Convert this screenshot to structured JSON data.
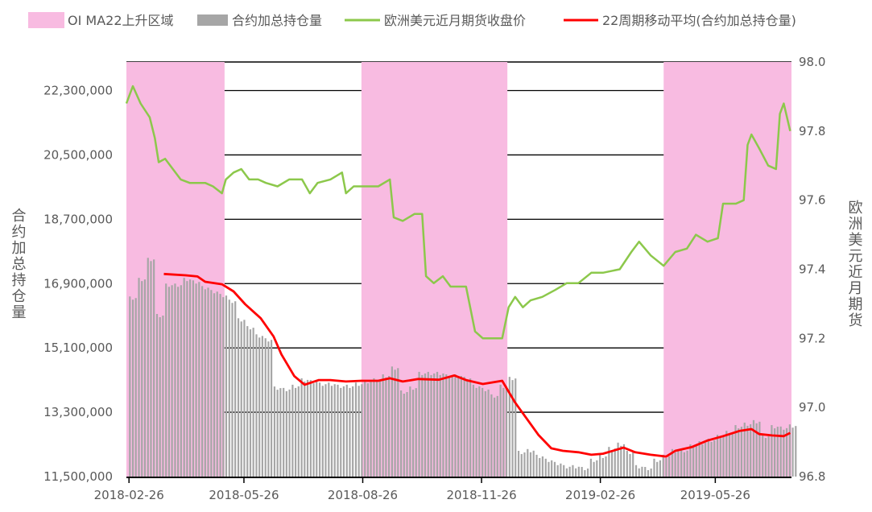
{
  "chart_data": {
    "type": "bar+line",
    "legend": {
      "placement": "top",
      "items": [
        {
          "name": "OI MA22上升区域",
          "kind": "area",
          "color": "#f8bbe1"
        },
        {
          "name": "合约加总持仓量",
          "kind": "bar",
          "color": "#a6a6a6"
        },
        {
          "name": "欧洲美元近月期货收盘价",
          "kind": "line",
          "color": "#8cc84b"
        },
        {
          "name": "22周期移动平均(合约加总持仓量)",
          "kind": "line",
          "color": "#ff0000"
        }
      ]
    },
    "xlim": [
      "2018-02-24",
      "2019-07-24"
    ],
    "x_ticks": [
      "2018-02-26",
      "2018-05-26",
      "2018-08-26",
      "2018-11-26",
      "2019-02-26",
      "2019-05-26"
    ],
    "left_axis": {
      "label": "合约加总持仓量",
      "ylim": [
        11500000,
        23100000
      ],
      "ticks": [
        11500000,
        13300000,
        15100000,
        16900000,
        18700000,
        20500000,
        22300000
      ],
      "tick_labels": [
        "11,500,000",
        "13,300,000",
        "15,100,000",
        "16,900,000",
        "18,700,000",
        "20,500,000",
        "22,300,000"
      ]
    },
    "right_axis": {
      "label": "欧洲美元近月期货",
      "ylim": [
        96.8,
        98.0
      ],
      "tick_labels": [
        "96.8",
        "97.0",
        "97.2",
        "97.4",
        "97.6",
        "97.8",
        "98.0"
      ]
    },
    "grid": true,
    "shaded_regions": [
      [
        "2018-02-24",
        "2018-05-11"
      ],
      [
        "2018-08-25",
        "2018-12-16"
      ],
      [
        "2019-04-16",
        "2019-07-24"
      ]
    ],
    "oi_bars": {
      "dates": [
        "2018-02-26",
        "2018-03-05",
        "2018-03-12",
        "2018-03-19",
        "2018-03-26",
        "2018-04-02",
        "2018-04-09",
        "2018-04-16",
        "2018-04-23",
        "2018-04-30",
        "2018-05-07",
        "2018-05-14",
        "2018-05-21",
        "2018-05-28",
        "2018-06-04",
        "2018-06-11",
        "2018-06-18",
        "2018-06-25",
        "2018-07-02",
        "2018-07-09",
        "2018-07-16",
        "2018-07-23",
        "2018-07-30",
        "2018-08-06",
        "2018-08-13",
        "2018-08-20",
        "2018-08-27",
        "2018-09-03",
        "2018-09-10",
        "2018-09-17",
        "2018-09-24",
        "2018-10-01",
        "2018-10-08",
        "2018-10-15",
        "2018-10-22",
        "2018-10-29",
        "2018-11-05",
        "2018-11-12",
        "2018-11-19",
        "2018-11-26",
        "2018-12-03",
        "2018-12-10",
        "2018-12-17",
        "2018-12-24",
        "2018-12-31",
        "2019-01-07",
        "2019-01-14",
        "2019-01-21",
        "2019-01-28",
        "2019-02-04",
        "2019-02-11",
        "2019-02-18",
        "2019-02-25",
        "2019-03-04",
        "2019-03-11",
        "2019-03-18",
        "2019-03-25",
        "2019-04-01",
        "2019-04-08",
        "2019-04-15",
        "2019-04-22",
        "2019-04-29",
        "2019-05-06",
        "2019-05-13",
        "2019-05-20",
        "2019-05-27",
        "2019-06-03",
        "2019-06-10",
        "2019-06-17",
        "2019-06-24",
        "2019-07-01",
        "2019-07-08",
        "2019-07-15",
        "2019-07-22"
      ],
      "values": [
        16540000,
        17060000,
        17620000,
        16050000,
        16900000,
        16900000,
        17060000,
        16990000,
        16830000,
        16720000,
        16610000,
        16450000,
        15930000,
        15710000,
        15480000,
        15370000,
        14020000,
        13980000,
        14070000,
        14250000,
        14200000,
        14130000,
        14130000,
        14070000,
        14070000,
        14130000,
        14200000,
        14250000,
        14360000,
        14580000,
        13910000,
        14020000,
        14430000,
        14430000,
        14430000,
        14360000,
        14360000,
        14290000,
        14070000,
        13980000,
        13800000,
        14070000,
        14290000,
        12220000,
        12270000,
        12110000,
        12000000,
        11910000,
        11820000,
        11820000,
        11770000,
        12000000,
        12110000,
        12330000,
        12450000,
        12220000,
        11820000,
        11770000,
        12000000,
        12110000,
        12270000,
        12270000,
        12400000,
        12490000,
        12560000,
        12670000,
        12780000,
        12940000,
        13010000,
        13080000,
        12670000,
        12940000,
        12900000,
        12960000
      ]
    },
    "price_line": {
      "points": [
        [
          "2018-02-24",
          97.88
        ],
        [
          "2018-03-01",
          97.93
        ],
        [
          "2018-03-07",
          97.88
        ],
        [
          "2018-03-14",
          97.84
        ],
        [
          "2018-03-18",
          97.78
        ],
        [
          "2018-03-21",
          97.71
        ],
        [
          "2018-03-26",
          97.72
        ],
        [
          "2018-04-01",
          97.69
        ],
        [
          "2018-04-07",
          97.66
        ],
        [
          "2018-04-14",
          97.65
        ],
        [
          "2018-04-20",
          97.65
        ],
        [
          "2018-04-26",
          97.65
        ],
        [
          "2018-05-02",
          97.64
        ],
        [
          "2018-05-09",
          97.62
        ],
        [
          "2018-05-12",
          97.66
        ],
        [
          "2018-05-18",
          97.68
        ],
        [
          "2018-05-24",
          97.69
        ],
        [
          "2018-05-30",
          97.66
        ],
        [
          "2018-06-06",
          97.66
        ],
        [
          "2018-06-12",
          97.65
        ],
        [
          "2018-06-21",
          97.64
        ],
        [
          "2018-06-30",
          97.66
        ],
        [
          "2018-07-10",
          97.66
        ],
        [
          "2018-07-16",
          97.62
        ],
        [
          "2018-07-22",
          97.65
        ],
        [
          "2018-08-01",
          97.66
        ],
        [
          "2018-08-10",
          97.68
        ],
        [
          "2018-08-13",
          97.62
        ],
        [
          "2018-08-19",
          97.64
        ],
        [
          "2018-08-25",
          97.64
        ],
        [
          "2018-09-07",
          97.64
        ],
        [
          "2018-09-16",
          97.66
        ],
        [
          "2018-09-19",
          97.55
        ],
        [
          "2018-09-26",
          97.54
        ],
        [
          "2018-10-05",
          97.56
        ],
        [
          "2018-10-11",
          97.56
        ],
        [
          "2018-10-14",
          97.38
        ],
        [
          "2018-10-20",
          97.36
        ],
        [
          "2018-10-27",
          97.38
        ],
        [
          "2018-11-02",
          97.35
        ],
        [
          "2018-11-08",
          97.35
        ],
        [
          "2018-11-14",
          97.35
        ],
        [
          "2018-11-21",
          97.22
        ],
        [
          "2018-11-27",
          97.2
        ],
        [
          "2018-12-03",
          97.2
        ],
        [
          "2018-12-12",
          97.2
        ],
        [
          "2018-12-17",
          97.29
        ],
        [
          "2018-12-22",
          97.32
        ],
        [
          "2018-12-28",
          97.29
        ],
        [
          "2019-01-03",
          97.31
        ],
        [
          "2019-01-12",
          97.32
        ],
        [
          "2019-01-22",
          97.34
        ],
        [
          "2019-01-31",
          97.36
        ],
        [
          "2019-02-09",
          97.36
        ],
        [
          "2019-02-19",
          97.39
        ],
        [
          "2019-02-28",
          97.39
        ],
        [
          "2019-03-13",
          97.4
        ],
        [
          "2019-03-22",
          97.45
        ],
        [
          "2019-03-28",
          97.48
        ],
        [
          "2019-04-06",
          97.44
        ],
        [
          "2019-04-16",
          97.41
        ],
        [
          "2019-04-25",
          97.45
        ],
        [
          "2019-05-04",
          97.46
        ],
        [
          "2019-05-11",
          97.5
        ],
        [
          "2019-05-20",
          97.48
        ],
        [
          "2019-05-28",
          97.49
        ],
        [
          "2019-06-01",
          97.59
        ],
        [
          "2019-06-11",
          97.59
        ],
        [
          "2019-06-17",
          97.6
        ],
        [
          "2019-06-20",
          97.76
        ],
        [
          "2019-06-23",
          97.79
        ],
        [
          "2019-06-29",
          97.75
        ],
        [
          "2019-07-06",
          97.7
        ],
        [
          "2019-07-12",
          97.69
        ],
        [
          "2019-07-15",
          97.85
        ],
        [
          "2019-07-18",
          97.88
        ],
        [
          "2019-07-23",
          97.8
        ]
      ]
    },
    "ma22_line": {
      "points": [
        [
          "2018-03-25",
          17170000
        ],
        [
          "2018-04-11",
          17130000
        ],
        [
          "2018-04-20",
          17100000
        ],
        [
          "2018-04-26",
          16950000
        ],
        [
          "2018-05-09",
          16880000
        ],
        [
          "2018-05-18",
          16680000
        ],
        [
          "2018-05-27",
          16320000
        ],
        [
          "2018-06-08",
          15930000
        ],
        [
          "2018-06-18",
          15420000
        ],
        [
          "2018-06-24",
          14920000
        ],
        [
          "2018-07-04",
          14310000
        ],
        [
          "2018-07-12",
          14070000
        ],
        [
          "2018-07-23",
          14200000
        ],
        [
          "2018-08-01",
          14200000
        ],
        [
          "2018-08-13",
          14160000
        ],
        [
          "2018-08-25",
          14180000
        ],
        [
          "2018-09-07",
          14180000
        ],
        [
          "2018-09-16",
          14250000
        ],
        [
          "2018-09-26",
          14160000
        ],
        [
          "2018-10-08",
          14230000
        ],
        [
          "2018-10-24",
          14210000
        ],
        [
          "2018-11-05",
          14330000
        ],
        [
          "2018-11-14",
          14200000
        ],
        [
          "2018-11-27",
          14090000
        ],
        [
          "2018-12-12",
          14180000
        ],
        [
          "2018-12-22",
          13570000
        ],
        [
          "2018-12-31",
          13120000
        ],
        [
          "2019-01-09",
          12670000
        ],
        [
          "2019-01-19",
          12290000
        ],
        [
          "2019-01-28",
          12220000
        ],
        [
          "2019-02-09",
          12180000
        ],
        [
          "2019-02-19",
          12110000
        ],
        [
          "2019-02-28",
          12140000
        ],
        [
          "2019-03-16",
          12310000
        ],
        [
          "2019-03-25",
          12180000
        ],
        [
          "2019-04-06",
          12110000
        ],
        [
          "2019-04-18",
          12060000
        ],
        [
          "2019-04-25",
          12220000
        ],
        [
          "2019-05-08",
          12330000
        ],
        [
          "2019-05-20",
          12510000
        ],
        [
          "2019-06-01",
          12630000
        ],
        [
          "2019-06-14",
          12780000
        ],
        [
          "2019-06-23",
          12830000
        ],
        [
          "2019-06-29",
          12690000
        ],
        [
          "2019-07-09",
          12650000
        ],
        [
          "2019-07-18",
          12630000
        ],
        [
          "2019-07-23",
          12720000
        ]
      ]
    }
  }
}
